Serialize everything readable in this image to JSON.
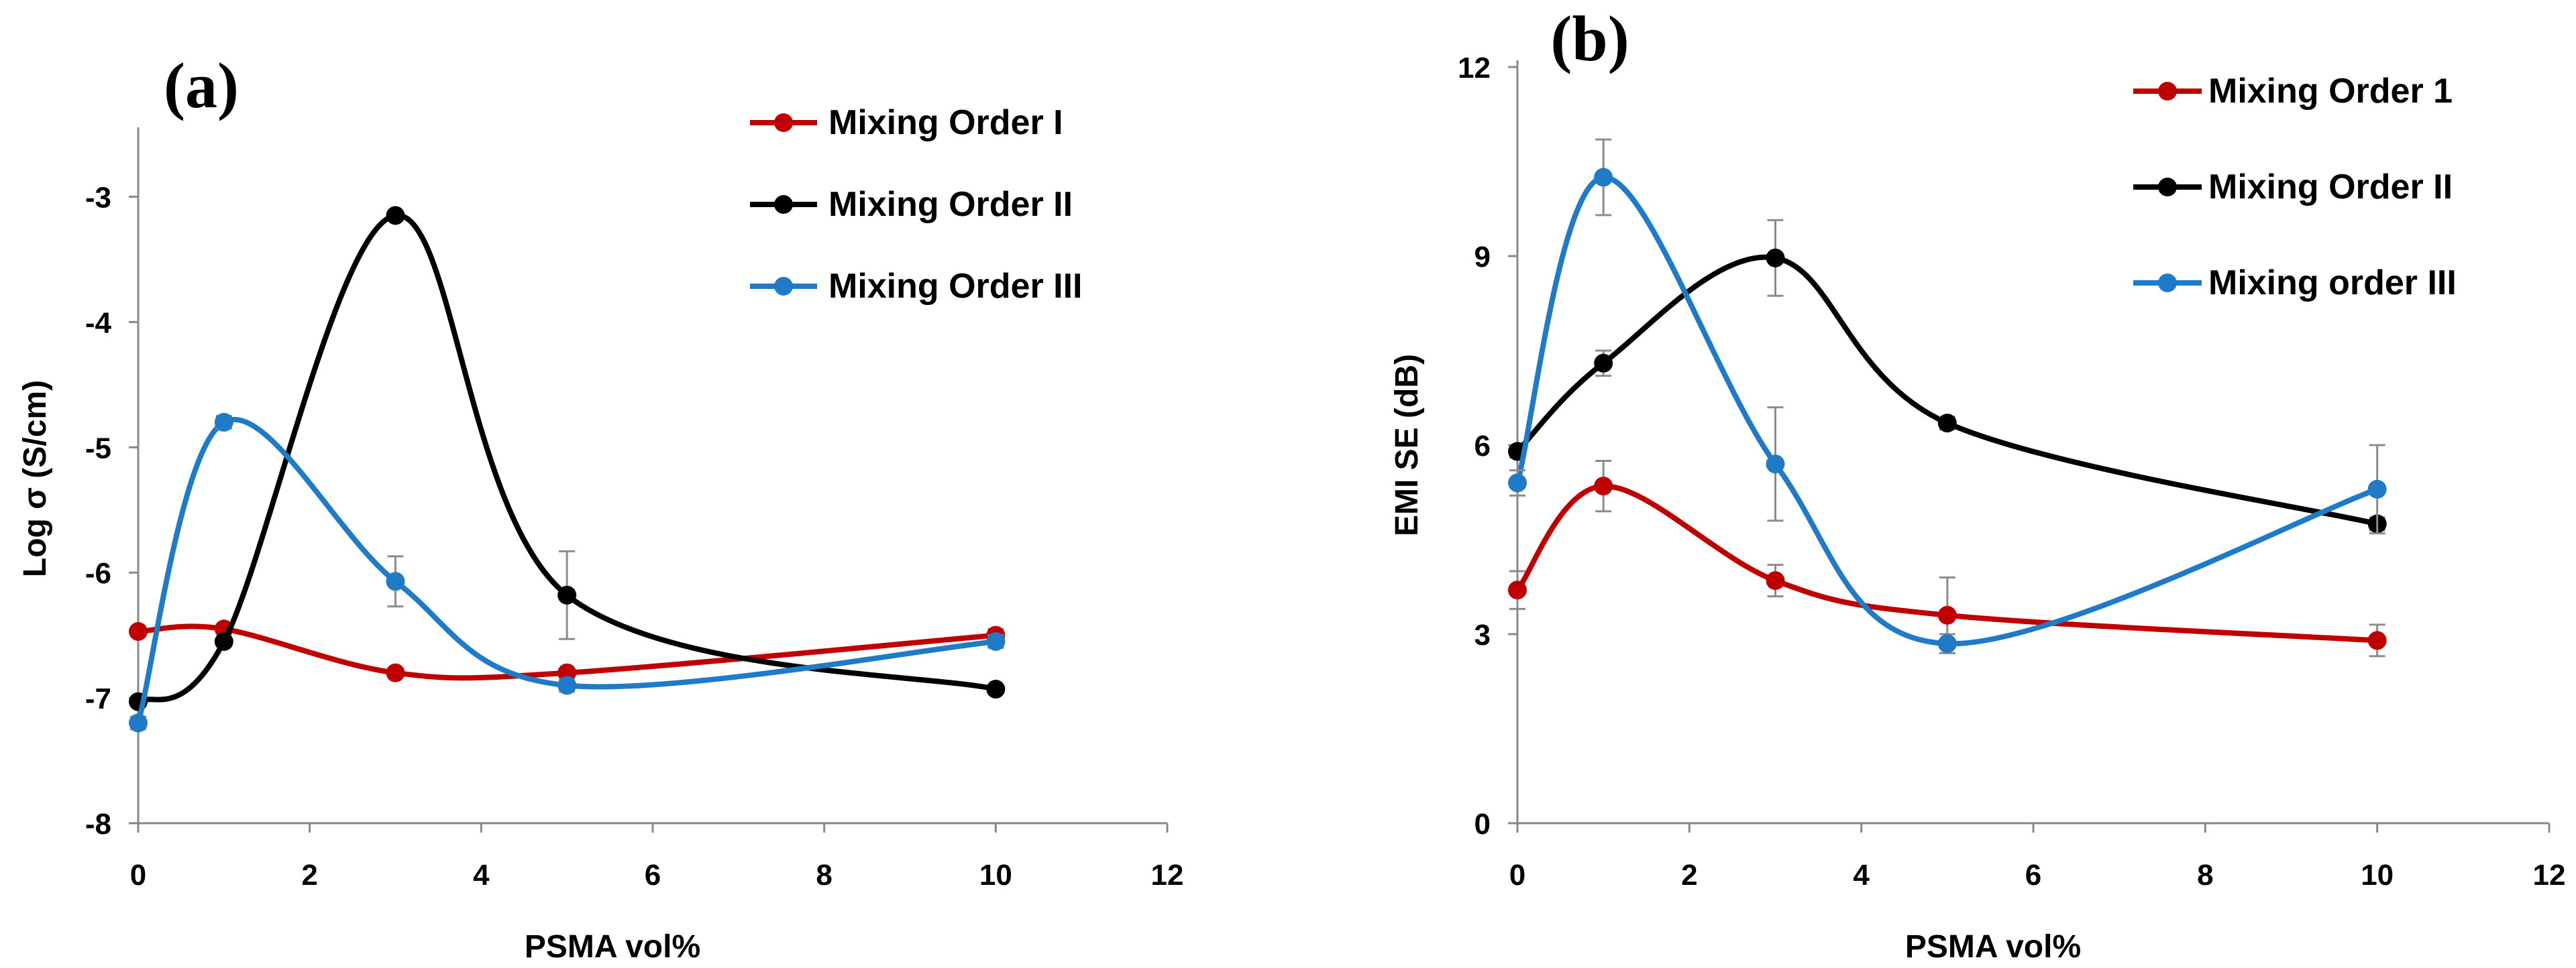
{
  "chart_data": [
    {
      "panel": "(a)",
      "type": "line",
      "xlabel": "PSMA vol%",
      "ylabel": "Log σ (S/cm)",
      "xlim": [
        0,
        12
      ],
      "ylim": [
        -8,
        -2.5
      ],
      "xticks": [
        0,
        2,
        4,
        6,
        8,
        10,
        12
      ],
      "yticks": [
        -8,
        -7,
        -6,
        -5,
        -4,
        -3
      ],
      "x": [
        0,
        1,
        3,
        5,
        10
      ],
      "legend_position": "top-right",
      "series": [
        {
          "name": "Mixing Order I",
          "color": "#c00000",
          "values": [
            -6.47,
            -6.45,
            -6.8,
            -6.8,
            -6.5
          ],
          "errors": [
            0.03,
            0.03,
            0.03,
            0.03,
            0.05
          ]
        },
        {
          "name": "Mixing Order II",
          "color": "#000000",
          "values": [
            -7.03,
            -6.55,
            -3.15,
            -6.18,
            -6.93
          ],
          "errors": [
            0.03,
            0.03,
            0.03,
            0.35,
            0.03
          ]
        },
        {
          "name": "Mixing Order III",
          "color": "#1f7bc8",
          "values": [
            -7.2,
            -4.8,
            -6.07,
            -6.9,
            -6.55
          ],
          "errors": [
            0.05,
            0.05,
            0.2,
            0.05,
            0.05
          ]
        }
      ]
    },
    {
      "panel": "(b)",
      "type": "line",
      "xlabel": "PSMA vol%",
      "ylabel": "EMI SE  (dB)",
      "xlim": [
        0,
        12
      ],
      "ylim": [
        0,
        12
      ],
      "xticks": [
        0,
        2,
        4,
        6,
        8,
        10,
        12
      ],
      "yticks": [
        0,
        3,
        6,
        9,
        12
      ],
      "x": [
        0,
        1,
        3,
        5,
        10
      ],
      "legend_position": "top-right",
      "series": [
        {
          "name": "Mixing Order 1",
          "color": "#c00000",
          "values": [
            3.7,
            5.35,
            3.85,
            3.3,
            2.9
          ],
          "errors": [
            0.3,
            0.4,
            0.25,
            0.6,
            0.25
          ]
        },
        {
          "name": "Mixing Order II",
          "color": "#000000",
          "values": [
            5.9,
            7.3,
            8.97,
            6.35,
            4.75
          ],
          "errors": [
            0.1,
            0.2,
            0.6,
            0.1,
            0.1
          ]
        },
        {
          "name": "Mixing order III",
          "color": "#1f7bc8",
          "values": [
            5.4,
            10.25,
            5.7,
            2.85,
            5.3
          ],
          "errors": [
            0.2,
            0.6,
            0.9,
            0.15,
            0.7
          ]
        }
      ]
    }
  ]
}
